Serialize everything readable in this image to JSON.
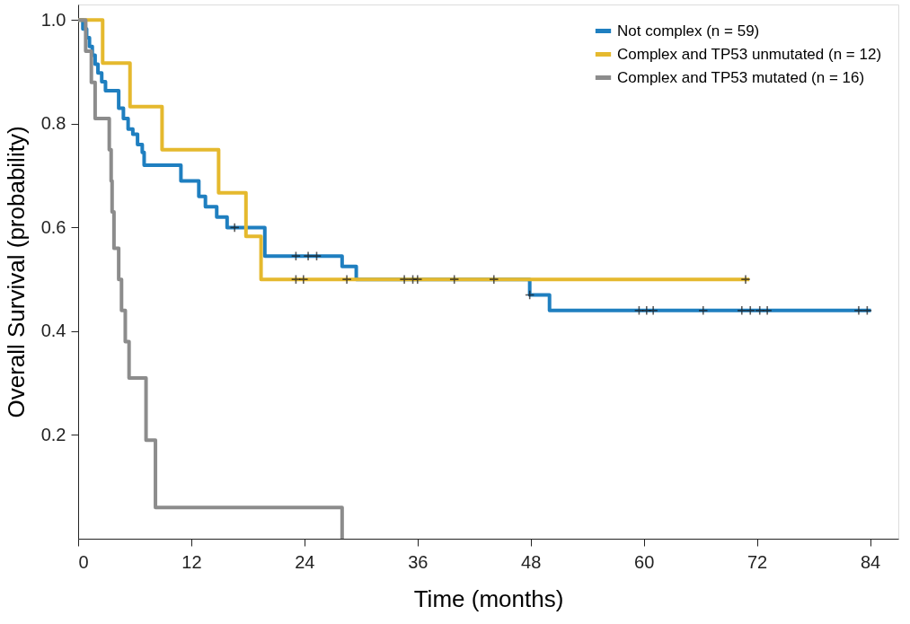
{
  "chart_data": {
    "type": "step",
    "xlabel": "Time (months)",
    "ylabel": "Overall Survival (probability)",
    "xlim": [
      0,
      87
    ],
    "xticks": [
      0,
      12,
      24,
      36,
      48,
      60,
      72,
      84
    ],
    "ylim": [
      0,
      1.03
    ],
    "yticks": [
      {
        "value": 0.2,
        "label": "0.2"
      },
      {
        "value": 0.4,
        "label": "0.4"
      },
      {
        "value": 0.6,
        "label": "0.6"
      },
      {
        "value": 0.8,
        "label": "0.8"
      },
      {
        "value": 1.0,
        "label": "1.0"
      }
    ],
    "grid": false,
    "legend": "top right",
    "series": [
      {
        "name": "Not complex (n = 59)",
        "color": "#1f7fc0",
        "x": [
          0,
          0.5,
          0.9,
          1.2,
          1.5,
          1.8,
          2.1,
          2.5,
          2.9,
          4.3,
          4.8,
          5.3,
          5.8,
          6.3,
          6.8,
          7.0,
          10.9,
          12.8,
          13.5,
          14.7,
          15.8,
          19.8,
          28.0,
          29.5,
          47.9,
          50.0,
          84.1
        ],
        "values": [
          1.0,
          0.983,
          0.966,
          0.949,
          0.932,
          0.915,
          0.898,
          0.881,
          0.864,
          0.83,
          0.81,
          0.79,
          0.78,
          0.76,
          0.745,
          0.72,
          0.69,
          0.66,
          0.64,
          0.62,
          0.6,
          0.545,
          0.525,
          0.5,
          0.47,
          0.44,
          0.44
        ]
      },
      {
        "name": "Complex and TP53 unmutated (n = 12)",
        "color": "#e5b92e",
        "x": [
          0,
          2.6,
          5.5,
          8.9,
          14.9,
          17.8,
          19.4,
          71.2
        ],
        "values": [
          1.0,
          0.917,
          0.833,
          0.75,
          0.667,
          0.583,
          0.5,
          0.5
        ]
      },
      {
        "name": "Complex and TP53 mutated (n = 16)",
        "color": "#8c8c8c",
        "x": [
          0,
          0.8,
          1.4,
          1.8,
          3.3,
          3.5,
          3.6,
          3.8,
          4.3,
          4.6,
          5.0,
          5.4,
          7.2,
          8.2,
          28.0
        ],
        "values": [
          1.0,
          0.94,
          0.88,
          0.81,
          0.75,
          0.69,
          0.63,
          0.56,
          0.5,
          0.44,
          0.38,
          0.31,
          0.19,
          0.06,
          0.0
        ]
      },
      {
        "type": "scatter",
        "marker": "cross",
        "color": "#1a1a1a",
        "x": [
          16.6,
          23.1,
          24.4,
          25.3,
          47.9,
          59.5,
          60.3,
          61.0,
          66.3,
          70.4,
          71.3,
          72.3,
          73.1,
          82.8,
          83.7
        ],
        "values": [
          0.6,
          0.545,
          0.545,
          0.545,
          0.47,
          0.44,
          0.44,
          0.44,
          0.44,
          0.44,
          0.44,
          0.44,
          0.44,
          0.44,
          0.44
        ]
      },
      {
        "type": "scatter",
        "marker": "cross",
        "color": "#1a1a1a",
        "x": [
          23.1,
          23.9,
          28.5,
          34.6,
          35.5,
          36.0,
          39.9,
          44.1,
          70.8
        ],
        "values": [
          0.5,
          0.5,
          0.5,
          0.5,
          0.5,
          0.5,
          0.5,
          0.5,
          0.5
        ]
      }
    ]
  }
}
